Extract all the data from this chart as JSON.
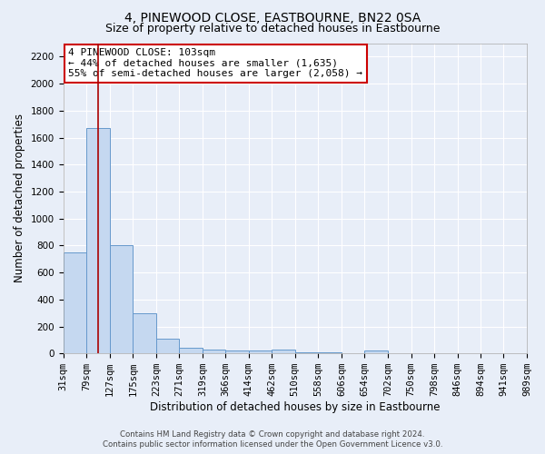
{
  "title": "4, PINEWOOD CLOSE, EASTBOURNE, BN22 0SA",
  "subtitle": "Size of property relative to detached houses in Eastbourne",
  "xlabel": "Distribution of detached houses by size in Eastbourne",
  "ylabel": "Number of detached properties",
  "bin_edges": [
    31,
    79,
    127,
    175,
    223,
    271,
    319,
    366,
    414,
    462,
    510,
    558,
    606,
    654,
    702,
    750,
    798,
    846,
    894,
    941,
    989
  ],
  "bar_heights": [
    750,
    1670,
    800,
    295,
    110,
    40,
    30,
    25,
    20,
    30,
    10,
    10,
    0,
    20,
    0,
    0,
    0,
    0,
    0,
    0
  ],
  "bar_color": "#c5d8f0",
  "bar_edge_color": "#6699cc",
  "red_line_x": 103,
  "annotation_text": "4 PINEWOOD CLOSE: 103sqm\n← 44% of detached houses are smaller (1,635)\n55% of semi-detached houses are larger (2,058) →",
  "annotation_box_color": "#ffffff",
  "annotation_box_edge": "#cc0000",
  "red_line_color": "#aa0000",
  "ylim": [
    0,
    2300
  ],
  "yticks": [
    0,
    200,
    400,
    600,
    800,
    1000,
    1200,
    1400,
    1600,
    1800,
    2000,
    2200
  ],
  "bg_color": "#e8eef8",
  "grid_color": "#ffffff",
  "footer_line1": "Contains HM Land Registry data © Crown copyright and database right 2024.",
  "footer_line2": "Contains public sector information licensed under the Open Government Licence v3.0.",
  "title_fontsize": 10,
  "subtitle_fontsize": 9,
  "axis_label_fontsize": 8.5,
  "tick_fontsize": 7.5,
  "annot_fontsize": 8
}
